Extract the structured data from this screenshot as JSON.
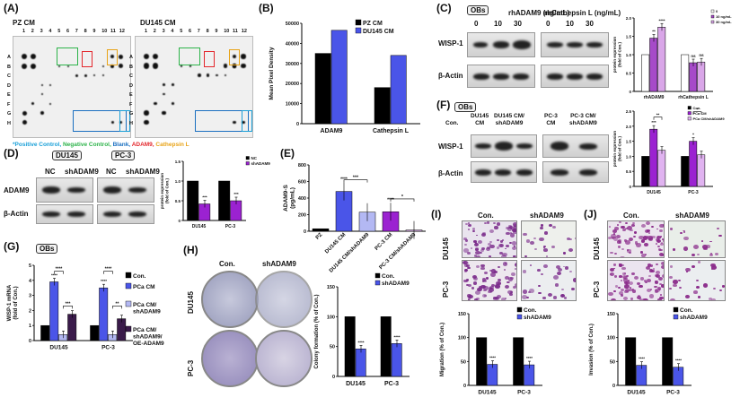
{
  "panels": {
    "A": {
      "label": "(A)",
      "left_title": "PZ  CM",
      "right_title": "DU145 CM",
      "col_numbers": [
        "1",
        "2",
        "3",
        "4",
        "5",
        "6",
        "7",
        "8",
        "9",
        "10",
        "11",
        "12"
      ],
      "row_letters": [
        "A",
        "B",
        "C",
        "D",
        "E",
        "F",
        "G",
        "H"
      ],
      "legend": [
        {
          "text": "*Positive Control,",
          "color": "#1aa0d8"
        },
        {
          "text": "Negative Control,",
          "color": "#2db34a"
        },
        {
          "text": "Blank,",
          "color": "#1a6fc0"
        },
        {
          "text": "ADAM9,",
          "color": "#e3262b"
        },
        {
          "text": "Cathepsin L",
          "color": "#e8a317"
        }
      ]
    },
    "B": {
      "label": "(B)"
    },
    "C": {
      "label": "(C)",
      "obs": "OBs",
      "title_left": "rhADAM9 (ng/mL)",
      "title_right": "rhCathepsin L (ng/mL)",
      "doses_left": [
        "0",
        "10",
        "30"
      ],
      "doses_right": [
        "0",
        "10",
        "30"
      ],
      "rows": [
        "WISP-1",
        "β-Actin"
      ]
    },
    "D": {
      "label": "(D)",
      "cell_left": "DU145",
      "cell_right": "PC-3",
      "lanes": [
        "NC",
        "shADAM9",
        "NC",
        "shADAM9"
      ],
      "rows": [
        "ADAM9",
        "β-Actin"
      ]
    },
    "E": {
      "label": "(E)"
    },
    "F": {
      "label": "(F)",
      "obs": "OBs",
      "lanes": [
        "Con.",
        "DU145\nCM",
        "DU145 CM/\nshADAM9",
        "PC-3\nCM",
        "PC-3 CM/\nshADAM9"
      ],
      "rows": [
        "WISP-1",
        "β-Actin"
      ]
    },
    "G": {
      "label": "(G)",
      "obs": "OBs"
    },
    "H": {
      "label": "(H)",
      "col_con": "Con.",
      "col_sh": "shADAM9",
      "row_du": "DU145",
      "row_pc": "PC-3"
    },
    "I": {
      "label": "(I)",
      "col_con": "Con.",
      "col_sh": "shADAM9",
      "row_du": "DU145",
      "row_pc": "PC-3"
    },
    "J": {
      "label": "(J)",
      "col_con": "Con.",
      "col_sh": "shADAM9",
      "row_du": "DU145",
      "row_pc": "PC-3"
    }
  },
  "chart_data": [
    {
      "id": "B",
      "type": "bar",
      "categories": [
        "ADAM9",
        "Cathepsin L"
      ],
      "series": [
        {
          "name": "PZ CM",
          "color": "#000000",
          "values": [
            35000,
            18000
          ]
        },
        {
          "name": "DU145 CM",
          "color": "#4a55e8",
          "values": [
            46500,
            34000
          ]
        }
      ],
      "ylabel": "Mean Pixel Density",
      "ylim": [
        0,
        50000
      ],
      "yticks": [
        "0",
        "10000",
        "20000",
        "30000",
        "40000",
        "50000"
      ],
      "legend": "top-right"
    },
    {
      "id": "C",
      "type": "bar",
      "categories": [
        "rhADAM9",
        "rhCathepsin L"
      ],
      "series": [
        {
          "name": "0",
          "color": "#ffffff",
          "values": [
            1.0,
            1.0
          ]
        },
        {
          "name": "10 ng/mL",
          "color": "#a64ac9",
          "values": [
            1.45,
            0.78
          ]
        },
        {
          "name": "30 ng/mL",
          "color": "#d9a6e8",
          "values": [
            1.75,
            0.8
          ]
        }
      ],
      "stars": [
        [
          "",
          "**",
          "****"
        ],
        [
          "",
          "ns",
          "ns"
        ]
      ],
      "ylabel": "protein expression\n(fold of Con.)",
      "ylim": [
        0,
        2.0
      ],
      "yticks": [
        "0",
        "0.5",
        "1.0",
        "1.5",
        "2.0"
      ],
      "legend": "top-right"
    },
    {
      "id": "D",
      "type": "bar",
      "categories": [
        "DU145",
        "PC-3"
      ],
      "series": [
        {
          "name": "NC",
          "color": "#000000",
          "values": [
            1.0,
            1.0
          ]
        },
        {
          "name": "shADAM9",
          "color": "#9b22d1",
          "values": [
            0.42,
            0.5
          ]
        }
      ],
      "stars": [
        [
          "",
          "***"
        ],
        [
          "",
          "***"
        ]
      ],
      "ylabel": "protein expression\n(fold of Con.)",
      "ylim": [
        0,
        1.5
      ],
      "yticks": [
        "0",
        "0.5",
        "1.0",
        "1.5"
      ],
      "legend": "top-right"
    },
    {
      "id": "E",
      "type": "bar",
      "categories": [
        "PZ",
        "DU145 CM",
        "DU145 CM/shADAM9",
        "PC-3 CM",
        "PC-3 CM/shADAM9"
      ],
      "values": [
        30,
        480,
        230,
        235,
        15
      ],
      "colors": [
        "#000000",
        "#4a55e8",
        "#b3b8f3",
        "#9b22d1",
        "#e0b3f0"
      ],
      "stars": [
        "",
        "****",
        "",
        "****",
        ""
      ],
      "brackets": [
        {
          "from": 1,
          "to": 2,
          "label": "***"
        },
        {
          "from": 3,
          "to": 4,
          "label": "*"
        }
      ],
      "ylabel": "ADAM9-S\n(pg/mL)",
      "ylim": [
        0,
        800
      ],
      "yticks": [
        "0",
        "200",
        "400",
        "600",
        "800"
      ]
    },
    {
      "id": "F",
      "type": "bar",
      "categories": [
        "DU145",
        "PC-3"
      ],
      "series": [
        {
          "name": "Con.",
          "color": "#000000",
          "values": [
            1.0,
            1.0
          ]
        },
        {
          "name": "PCa CM",
          "color": "#9b22d1",
          "values": [
            1.9,
            1.5
          ]
        },
        {
          "name": "PCa CM/shADAM9",
          "color": "#e0b3f0",
          "values": [
            1.2,
            1.05
          ]
        }
      ],
      "stars": [
        [
          "",
          "***",
          ""
        ],
        [
          "",
          "*",
          ""
        ]
      ],
      "brackets": [
        {
          "group": 0,
          "label": "**"
        },
        {
          "group": 1,
          "label": "*"
        }
      ],
      "ylabel": "protein expression\n(fold of Con.)",
      "ylim": [
        0,
        2.5
      ],
      "yticks": [
        "0",
        "0.5",
        "1.0",
        "1.5",
        "2.0",
        "2.5"
      ],
      "legend": "top-right"
    },
    {
      "id": "G",
      "type": "bar",
      "categories": [
        "DU145",
        "PC-3"
      ],
      "series": [
        {
          "name": "Con.",
          "color": "#000000",
          "values": [
            1.0,
            1.0
          ]
        },
        {
          "name": "PCa CM",
          "color": "#4a55e8",
          "values": [
            3.9,
            3.5
          ]
        },
        {
          "name": "PCa CM/\nshADAM9",
          "color": "#b3b8f3",
          "values": [
            0.4,
            0.4
          ]
        },
        {
          "name": "PCa CM/\nshADAM9/\nOE-ADAM9",
          "color": "#3a1a4a",
          "values": [
            1.75,
            1.45
          ]
        }
      ],
      "stars": [
        [
          "",
          "****",
          "",
          ""
        ],
        [
          "",
          "****",
          "",
          ""
        ]
      ],
      "brackets": [
        {
          "group": 0,
          "from": 1,
          "to": 2,
          "label": "****"
        },
        {
          "group": 0,
          "from": 2,
          "to": 3,
          "label": "***"
        },
        {
          "group": 1,
          "from": 1,
          "to": 2,
          "label": "****"
        },
        {
          "group": 1,
          "from": 2,
          "to": 3,
          "label": "**"
        }
      ],
      "ylabel": "WISP-1 mRNA\n(fold of Con.)",
      "ylim": [
        0,
        5
      ],
      "yticks": [
        "0",
        "1",
        "2",
        "3",
        "4",
        "5"
      ],
      "legend": "right"
    },
    {
      "id": "H",
      "type": "bar",
      "categories": [
        "DU145",
        "PC-3"
      ],
      "series": [
        {
          "name": "Con.",
          "color": "#000000",
          "values": [
            100,
            100
          ]
        },
        {
          "name": "shADAM9",
          "color": "#4a55e8",
          "values": [
            46,
            55
          ]
        }
      ],
      "stars": [
        [
          "",
          "****"
        ],
        [
          "",
          "****"
        ]
      ],
      "ylabel": "Colony formation (% of Con.)",
      "ylim": [
        0,
        150
      ],
      "yticks": [
        "0",
        "50",
        "100",
        "150"
      ],
      "legend": "top-right"
    },
    {
      "id": "I",
      "type": "bar",
      "categories": [
        "DU145",
        "PC-3"
      ],
      "series": [
        {
          "name": "Con.",
          "color": "#000000",
          "values": [
            100,
            100
          ]
        },
        {
          "name": "shADAM9",
          "color": "#4a55e8",
          "values": [
            44,
            43
          ]
        }
      ],
      "stars": [
        [
          "",
          "****"
        ],
        [
          "",
          "****"
        ]
      ],
      "ylabel": "Migration (% of Con.)",
      "ylim": [
        0,
        150
      ],
      "yticks": [
        "0",
        "50",
        "100",
        "150"
      ],
      "legend": "top-right"
    },
    {
      "id": "J",
      "type": "bar",
      "categories": [
        "DU145",
        "PC-3"
      ],
      "series": [
        {
          "name": "Con.",
          "color": "#000000",
          "values": [
            100,
            100
          ]
        },
        {
          "name": "shADAM9",
          "color": "#4a55e8",
          "values": [
            42,
            38
          ]
        }
      ],
      "stars": [
        [
          "",
          "****"
        ],
        [
          "",
          "****"
        ]
      ],
      "ylabel": "Invasion (% of Con.)",
      "ylim": [
        0,
        150
      ],
      "yticks": [
        "0",
        "50",
        "100",
        "150"
      ],
      "legend": "top-right"
    }
  ]
}
